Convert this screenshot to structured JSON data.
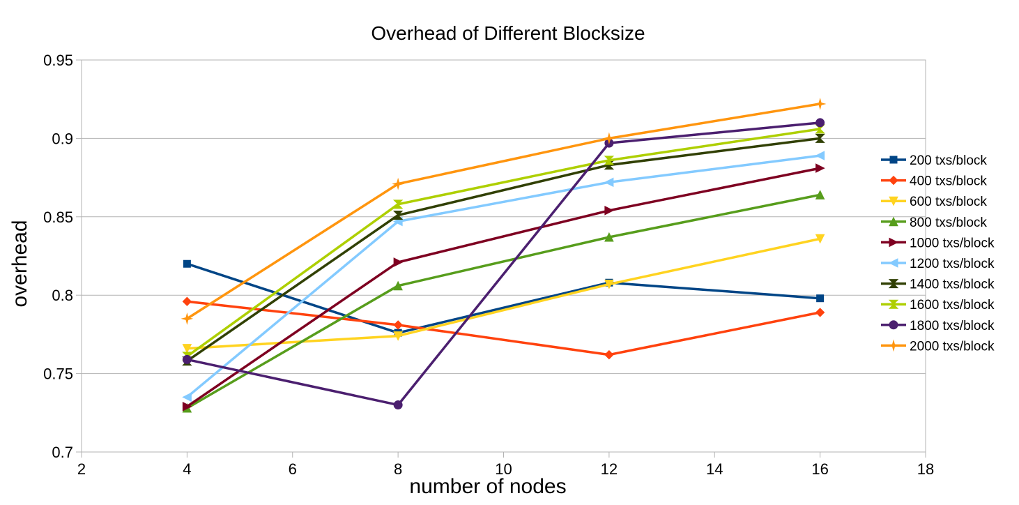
{
  "chart_data": {
    "type": "line",
    "title": "Overhead of Different Blocksize",
    "xlabel": "number of nodes",
    "ylabel": "overhead",
    "xlim": [
      2,
      18
    ],
    "ylim": [
      0.7,
      0.95
    ],
    "xticks": [
      "2",
      "4",
      "6",
      "8",
      "10",
      "12",
      "14",
      "16",
      "18"
    ],
    "yticks": [
      "0.7",
      "0.75",
      "0.8",
      "0.85",
      "0.9",
      "0.95"
    ],
    "grid": "horizontal",
    "legend_position": "right",
    "x": [
      4,
      8,
      12,
      16
    ],
    "series": [
      {
        "name": "200 txs/block",
        "values": [
          0.82,
          0.776,
          0.808,
          0.798
        ],
        "color": "#004586",
        "marker": "square"
      },
      {
        "name": "400 txs/block",
        "values": [
          0.796,
          0.781,
          0.762,
          0.789
        ],
        "color": "#ff420e",
        "marker": "diamond"
      },
      {
        "name": "600 txs/block",
        "values": [
          0.766,
          0.774,
          0.807,
          0.836
        ],
        "color": "#ffd320",
        "marker": "triangle-down"
      },
      {
        "name": "800 txs/block",
        "values": [
          0.728,
          0.806,
          0.837,
          0.864
        ],
        "color": "#579d1c",
        "marker": "triangle-up"
      },
      {
        "name": "1000 txs/block",
        "values": [
          0.729,
          0.821,
          0.854,
          0.881
        ],
        "color": "#7e0021",
        "marker": "triangle-right"
      },
      {
        "name": "1200 txs/block",
        "values": [
          0.735,
          0.847,
          0.872,
          0.889
        ],
        "color": "#83caff",
        "marker": "triangle-left"
      },
      {
        "name": "1400 txs/block",
        "values": [
          0.758,
          0.851,
          0.883,
          0.9
        ],
        "color": "#314004",
        "marker": "bowtie"
      },
      {
        "name": "1600 txs/block",
        "values": [
          0.761,
          0.858,
          0.886,
          0.906
        ],
        "color": "#aecf00",
        "marker": "hourglass"
      },
      {
        "name": "1800 txs/block",
        "values": [
          0.759,
          0.73,
          0.897,
          0.91
        ],
        "color": "#4b1f6f",
        "marker": "circle"
      },
      {
        "name": "2000 txs/block",
        "values": [
          0.785,
          0.871,
          0.9,
          0.922
        ],
        "color": "#ff950e",
        "marker": "star"
      }
    ]
  }
}
